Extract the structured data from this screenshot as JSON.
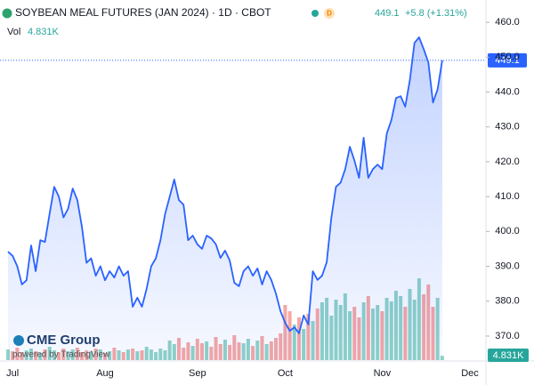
{
  "chart_data": {
    "type": "area",
    "title": "SOYBEAN MEAL FUTURES (JAN 2024) · 1D · CBOT",
    "badge": "D",
    "last_price_label": "449.1",
    "change_label": "+5.8 (+1.31%)",
    "color": "#2962ff",
    "up_color": "#8fd3c7",
    "down_color": "#f6a7a4",
    "categories": [
      null,
      "Jul",
      null,
      null,
      null,
      null,
      null,
      null,
      null,
      null,
      null,
      null,
      null,
      null,
      null,
      null,
      null,
      null,
      null,
      null,
      null,
      "Aug",
      null,
      null,
      null,
      null,
      null,
      null,
      null,
      null,
      null,
      null,
      null,
      null,
      null,
      null,
      null,
      null,
      null,
      null,
      null,
      "Sep",
      null,
      null,
      null,
      null,
      null,
      null,
      null,
      null,
      null,
      null,
      null,
      null,
      null,
      null,
      null,
      null,
      null,
      null,
      "Oct",
      null,
      null,
      null,
      null,
      null,
      null,
      null,
      null,
      null,
      null,
      null,
      null,
      null,
      null,
      null,
      null,
      null,
      null,
      null,
      null,
      "Nov",
      null,
      null,
      null,
      null,
      null,
      null,
      null,
      null,
      null,
      null,
      null,
      null,
      null,
      null,
      null,
      null,
      null,
      null,
      "Dec"
    ],
    "values": [
      394.2,
      393,
      390,
      384.8,
      386,
      396,
      388.6,
      397.5,
      397,
      405,
      412.8,
      410,
      404,
      406.5,
      412.3,
      409,
      401.4,
      391,
      392.3,
      387.3,
      390,
      386,
      388.6,
      386.8,
      390,
      387.3,
      388.6,
      378.4,
      381,
      378.4,
      383.5,
      390,
      392.3,
      397.5,
      405,
      410,
      414.9,
      409,
      407.7,
      397.5,
      398.8,
      396.3,
      395,
      398.8,
      398,
      396.3,
      392.4,
      394.5,
      391.7,
      385.3,
      384.3,
      388.6,
      390,
      387.3,
      389.4,
      384.8,
      388.6,
      386.1,
      382.2,
      377.1,
      373.8,
      371.5,
      372.5,
      370.8,
      375.9,
      373.3,
      388.6,
      386.1,
      387.3,
      391.2,
      403.9,
      412.8,
      414,
      417.9,
      424.3,
      420.3,
      415.4,
      426.9,
      415.4,
      417.9,
      419.2,
      417.9,
      428.1,
      432,
      438.3,
      438.8,
      435.8,
      443.4,
      454.1,
      455.7,
      452.3,
      448.5,
      437,
      440.8,
      449.1,
      null,
      null,
      null,
      null,
      null,
      null
    ],
    "volume": {
      "name": "Vol",
      "label": "4.831K",
      "values": [
        12,
        10,
        14,
        9,
        11,
        13,
        10,
        8,
        12,
        15,
        11,
        9,
        13,
        10,
        12,
        14,
        9,
        11,
        10,
        13,
        12,
        8,
        10,
        14,
        11,
        9,
        12,
        13,
        10,
        11,
        15,
        12,
        9,
        13,
        11,
        22,
        18,
        25,
        14,
        20,
        16,
        24,
        19,
        21,
        15,
        26,
        18,
        23,
        17,
        28,
        20,
        19,
        24,
        16,
        22,
        27,
        18,
        21,
        25,
        30,
        62,
        55,
        40,
        48,
        35,
        52,
        44,
        58,
        65,
        70,
        50,
        68,
        62,
        75,
        55,
        60,
        48,
        65,
        72,
        58,
        62,
        55,
        70,
        66,
        78,
        72,
        60,
        80,
        68,
        92,
        74,
        85,
        60,
        70,
        4.831,
        null,
        null,
        null,
        null,
        null,
        null
      ]
    },
    "ylim": [
      363.1,
      466.4
    ],
    "yticks": [
      {
        "value": 370,
        "label": "370.0"
      },
      {
        "value": 380,
        "label": "380.0"
      },
      {
        "value": 390,
        "label": "390.0"
      },
      {
        "value": 400,
        "label": "400.0"
      },
      {
        "value": 410,
        "label": "410.0"
      },
      {
        "value": 420,
        "label": "420.0"
      },
      {
        "value": 430,
        "label": "430.0"
      },
      {
        "value": 440,
        "label": "440.0"
      },
      {
        "value": 450,
        "label": "450.0"
      },
      {
        "value": 460,
        "label": "460.0"
      }
    ]
  },
  "branding": {
    "logo": "CME Group",
    "powered": "powered by TradingView"
  }
}
